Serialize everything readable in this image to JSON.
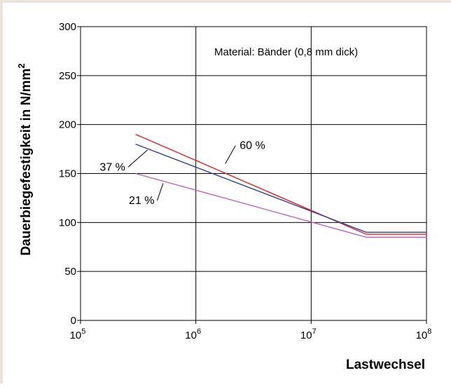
{
  "chart_data": {
    "type": "line",
    "xlabel": "Lastwechsel",
    "ylabel": "Dauerbiegefestigkeit in N/mm",
    "ylabel_sup": "2",
    "x_scale": "log",
    "xlim": [
      100000,
      100000000
    ],
    "ylim": [
      0,
      300
    ],
    "grid": true,
    "x_ticks": [
      {
        "base": "10",
        "exp": "5",
        "value": 100000
      },
      {
        "base": "10",
        "exp": "6",
        "value": 1000000
      },
      {
        "base": "10",
        "exp": "7",
        "value": 10000000
      },
      {
        "base": "10",
        "exp": "8",
        "value": 100000000
      }
    ],
    "y_ticks": [
      "0",
      "50",
      "100",
      "150",
      "200",
      "250",
      "300"
    ],
    "annotation": "Material: Bänder (0,8 mm dick)",
    "series": [
      {
        "name": "60 %",
        "color": "#e02020",
        "points": [
          [
            300000,
            190
          ],
          [
            30000000,
            88
          ],
          [
            100000000,
            88
          ]
        ],
        "label_anchor": [
          1800000,
          160
        ],
        "label_at": [
          2400000,
          175
        ]
      },
      {
        "name": "37 %",
        "color": "#2e3f9a",
        "points": [
          [
            300000,
            180
          ],
          [
            30000000,
            90
          ],
          [
            100000000,
            90
          ]
        ],
        "label_anchor": [
          380000,
          174
        ],
        "label_at": [
          190000,
          153
        ]
      },
      {
        "name": "21 %",
        "color": "#c060c0",
        "points": [
          [
            300000,
            150
          ],
          [
            30000000,
            85
          ],
          [
            100000000,
            85
          ]
        ],
        "label_anchor": [
          520000,
          140
        ],
        "label_at": [
          340000,
          119
        ]
      }
    ]
  }
}
